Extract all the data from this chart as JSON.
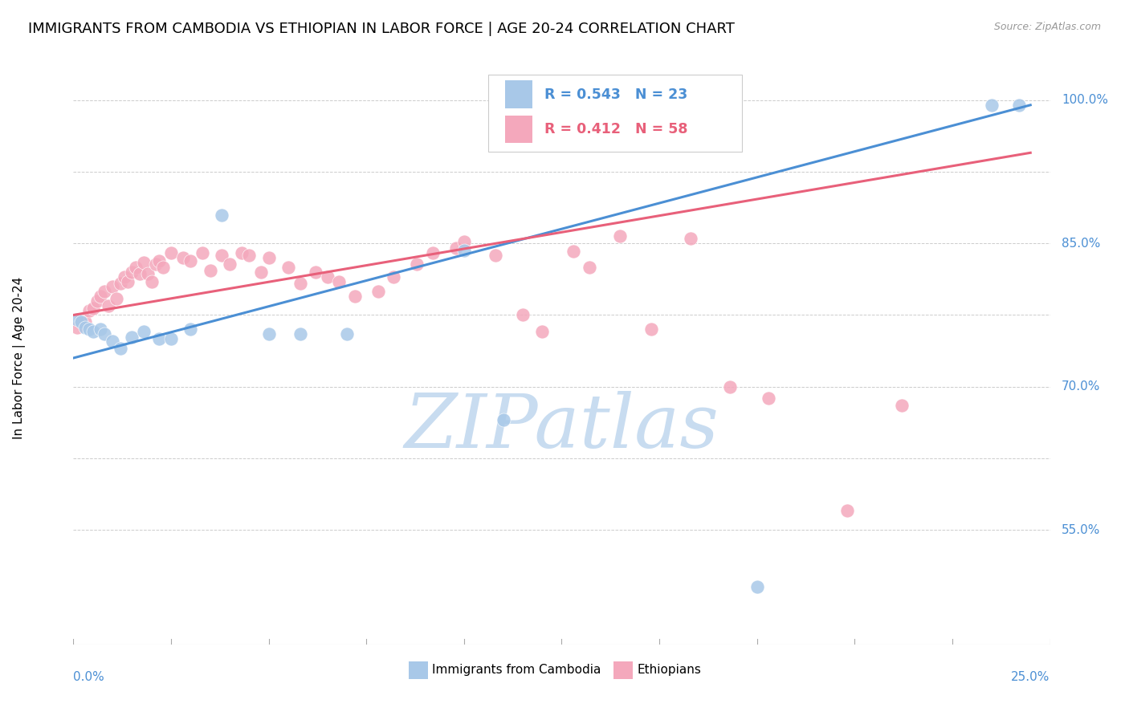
{
  "title": "IMMIGRANTS FROM CAMBODIA VS ETHIOPIAN IN LABOR FORCE | AGE 20-24 CORRELATION CHART",
  "source": "Source: ZipAtlas.com",
  "ylabel": "In Labor Force | Age 20-24",
  "xlim": [
    0.0,
    0.25
  ],
  "ylim": [
    0.43,
    1.03
  ],
  "ytick_values": [
    0.55,
    0.7,
    0.85,
    1.0
  ],
  "ytick_labels": [
    "55.0%",
    "70.0%",
    "85.0%",
    "100.0%"
  ],
  "R_cambodia": 0.543,
  "N_cambodia": 23,
  "R_ethiopian": 0.412,
  "N_ethiopian": 58,
  "color_cambodia": "#A8C8E8",
  "color_ethiopian": "#F4A8BC",
  "line_color_cambodia": "#4B8FD4",
  "line_color_ethiopian": "#E8607A",
  "watermark_color": "#C8DCF0",
  "cam_x": [
    0.001,
    0.002,
    0.003,
    0.004,
    0.005,
    0.007,
    0.008,
    0.01,
    0.012,
    0.015,
    0.018,
    0.022,
    0.025,
    0.03,
    0.038,
    0.05,
    0.058,
    0.07,
    0.1,
    0.11,
    0.175,
    0.235,
    0.242
  ],
  "cam_y": [
    0.77,
    0.768,
    0.762,
    0.76,
    0.758,
    0.76,
    0.755,
    0.748,
    0.74,
    0.752,
    0.758,
    0.75,
    0.75,
    0.76,
    0.88,
    0.755,
    0.755,
    0.755,
    0.843,
    0.665,
    0.49,
    0.995,
    0.995
  ],
  "eth_x": [
    0.001,
    0.002,
    0.003,
    0.004,
    0.005,
    0.006,
    0.007,
    0.008,
    0.009,
    0.01,
    0.011,
    0.012,
    0.013,
    0.014,
    0.015,
    0.016,
    0.017,
    0.018,
    0.019,
    0.02,
    0.021,
    0.022,
    0.023,
    0.025,
    0.028,
    0.03,
    0.033,
    0.035,
    0.038,
    0.04,
    0.043,
    0.045,
    0.048,
    0.05,
    0.055,
    0.058,
    0.062,
    0.065,
    0.068,
    0.072,
    0.078,
    0.082,
    0.088,
    0.092,
    0.098,
    0.1,
    0.108,
    0.115,
    0.12,
    0.128,
    0.132,
    0.14,
    0.148,
    0.158,
    0.168,
    0.178,
    0.198,
    0.212
  ],
  "eth_y": [
    0.762,
    0.77,
    0.768,
    0.78,
    0.782,
    0.79,
    0.795,
    0.8,
    0.785,
    0.805,
    0.792,
    0.808,
    0.815,
    0.81,
    0.82,
    0.825,
    0.818,
    0.83,
    0.818,
    0.81,
    0.828,
    0.832,
    0.825,
    0.84,
    0.835,
    0.832,
    0.84,
    0.822,
    0.838,
    0.828,
    0.84,
    0.838,
    0.82,
    0.835,
    0.825,
    0.808,
    0.82,
    0.815,
    0.81,
    0.795,
    0.8,
    0.815,
    0.828,
    0.84,
    0.845,
    0.852,
    0.838,
    0.775,
    0.758,
    0.842,
    0.825,
    0.858,
    0.76,
    0.855,
    0.7,
    0.688,
    0.57,
    0.68
  ]
}
